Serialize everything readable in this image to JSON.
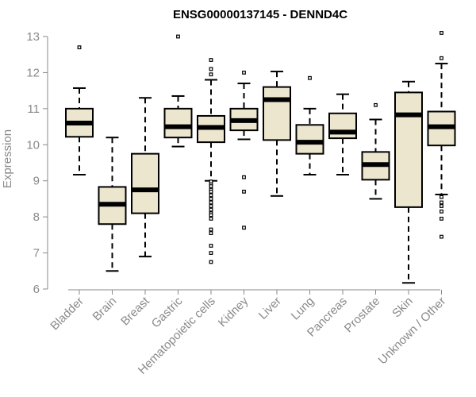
{
  "chart_data": {
    "type": "boxplot",
    "title": "ENSG00000137145 - DENND4C",
    "xlabel": "",
    "ylabel": "Expression",
    "ylim": [
      6,
      13
    ],
    "yticks": [
      6,
      7,
      8,
      9,
      10,
      11,
      12,
      13
    ],
    "grid": false,
    "box_fill": "#ede6cf",
    "box_stroke": "#000000",
    "axis_color": "#8a8a8a",
    "categories": [
      "Bladder",
      "Brain",
      "Breast",
      "Gastric",
      "Hematopoietic cells",
      "Kidney",
      "Liver",
      "Lung",
      "Pancreas",
      "Prostate",
      "Skin",
      "Unknown / Other"
    ],
    "boxes": [
      {
        "category": "Bladder",
        "whisker_low": 9.17,
        "q1": 10.22,
        "median": 10.6,
        "q3": 11.0,
        "whisker_high": 11.57,
        "outliers": [
          12.7
        ]
      },
      {
        "category": "Brain",
        "whisker_low": 6.5,
        "q1": 7.8,
        "median": 8.35,
        "q3": 8.83,
        "whisker_high": 10.2,
        "outliers": []
      },
      {
        "category": "Breast",
        "whisker_low": 6.9,
        "q1": 8.1,
        "median": 8.75,
        "q3": 9.75,
        "whisker_high": 11.3,
        "outliers": []
      },
      {
        "category": "Gastric",
        "whisker_low": 9.95,
        "q1": 10.2,
        "median": 10.5,
        "q3": 11.0,
        "whisker_high": 11.35,
        "outliers": [
          13.0
        ]
      },
      {
        "category": "Hematopoietic cells",
        "whisker_low": 9.0,
        "q1": 10.07,
        "median": 10.48,
        "q3": 10.8,
        "whisker_high": 11.8,
        "outliers": [
          12.35,
          12.1,
          11.95,
          8.98,
          8.9,
          8.85,
          8.75,
          8.7,
          8.6,
          8.5,
          8.4,
          8.3,
          8.2,
          8.1,
          8.05,
          7.95,
          7.65,
          7.55,
          7.2,
          7.0,
          6.75
        ]
      },
      {
        "category": "Kidney",
        "whisker_low": 10.15,
        "q1": 10.4,
        "median": 10.67,
        "q3": 11.0,
        "whisker_high": 11.7,
        "outliers": [
          12.0,
          9.1,
          8.7,
          7.7
        ]
      },
      {
        "category": "Liver",
        "whisker_low": 8.58,
        "q1": 10.13,
        "median": 11.25,
        "q3": 11.6,
        "whisker_high": 12.03,
        "outliers": []
      },
      {
        "category": "Lung",
        "whisker_low": 9.17,
        "q1": 9.75,
        "median": 10.07,
        "q3": 10.55,
        "whisker_high": 11.0,
        "outliers": [
          11.85
        ]
      },
      {
        "category": "Pancreas",
        "whisker_low": 9.17,
        "q1": 10.18,
        "median": 10.35,
        "q3": 10.87,
        "whisker_high": 11.4,
        "outliers": []
      },
      {
        "category": "Prostate",
        "whisker_low": 8.5,
        "q1": 9.03,
        "median": 9.45,
        "q3": 9.8,
        "whisker_high": 10.7,
        "outliers": [
          11.1
        ]
      },
      {
        "category": "Skin",
        "whisker_low": 6.17,
        "q1": 8.27,
        "median": 10.83,
        "q3": 11.45,
        "whisker_high": 11.75,
        "outliers": []
      },
      {
        "category": "Unknown / Other",
        "whisker_low": 8.62,
        "q1": 9.98,
        "median": 10.5,
        "q3": 10.92,
        "whisker_high": 12.25,
        "outliers": [
          13.1,
          12.4,
          8.55,
          8.4,
          8.3,
          8.15,
          7.95,
          7.45
        ]
      }
    ]
  }
}
